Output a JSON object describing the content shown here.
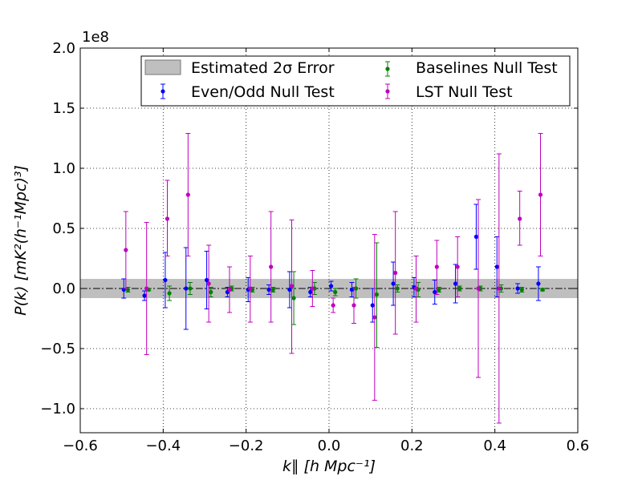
{
  "chart_data": {
    "type": "scatter",
    "xlabel": "k∥ [h Mpc⁻¹]",
    "ylabel": "P(k) [mK²(h⁻¹Mpc)³]",
    "exponent_label": "1e8",
    "xlim": [
      -0.6,
      0.6
    ],
    "ylim": [
      -1.2,
      2.0
    ],
    "x_ticks": [
      -0.6,
      -0.4,
      -0.2,
      0.0,
      0.2,
      0.4,
      0.6
    ],
    "x_tick_labels": [
      "−0.6",
      "−0.4",
      "−0.2",
      "0.0",
      "0.2",
      "0.4",
      "0.6"
    ],
    "y_ticks": [
      -1.0,
      -0.5,
      0.0,
      0.5,
      1.0,
      1.5,
      2.0
    ],
    "y_tick_labels": [
      "−1.0",
      "−0.5",
      "0.0",
      "0.5",
      "1.0",
      "1.5",
      "2.0"
    ],
    "grid": true,
    "legend_position": "top",
    "error_band": {
      "name": "Estimated 2σ Error",
      "lower": -0.08,
      "upper": 0.08,
      "color": "#bfbfbf"
    },
    "reference_line": {
      "y": 0.0,
      "style": "dash-dot",
      "color": "#000000"
    },
    "series": [
      {
        "name": "Even/Odd Null Test",
        "color": "#0000ff",
        "points": [
          {
            "x": -0.495,
            "y": -0.01,
            "lo": -0.08,
            "hi": 0.08
          },
          {
            "x": -0.445,
            "y": -0.06,
            "lo": -0.1,
            "hi": -0.02
          },
          {
            "x": -0.395,
            "y": 0.07,
            "lo": -0.16,
            "hi": 0.3
          },
          {
            "x": -0.345,
            "y": 0.0,
            "lo": -0.34,
            "hi": 0.34
          },
          {
            "x": -0.295,
            "y": 0.07,
            "lo": -0.17,
            "hi": 0.31
          },
          {
            "x": -0.245,
            "y": -0.03,
            "lo": -0.07,
            "hi": 0.01
          },
          {
            "x": -0.195,
            "y": -0.01,
            "lo": -0.11,
            "hi": 0.09
          },
          {
            "x": -0.145,
            "y": -0.01,
            "lo": -0.05,
            "hi": 0.03
          },
          {
            "x": -0.095,
            "y": -0.01,
            "lo": -0.16,
            "hi": 0.14
          },
          {
            "x": -0.045,
            "y": -0.03,
            "lo": -0.07,
            "hi": 0.01
          },
          {
            "x": 0.005,
            "y": 0.02,
            "lo": -0.02,
            "hi": 0.06
          },
          {
            "x": 0.055,
            "y": -0.01,
            "lo": -0.07,
            "hi": 0.05
          },
          {
            "x": 0.105,
            "y": -0.14,
            "lo": -0.28,
            "hi": 0.0
          },
          {
            "x": 0.155,
            "y": 0.04,
            "lo": -0.14,
            "hi": 0.22
          },
          {
            "x": 0.205,
            "y": 0.01,
            "lo": -0.07,
            "hi": 0.09
          },
          {
            "x": 0.255,
            "y": -0.03,
            "lo": -0.13,
            "hi": 0.07
          },
          {
            "x": 0.305,
            "y": 0.04,
            "lo": -0.12,
            "hi": 0.2
          },
          {
            "x": 0.355,
            "y": 0.43,
            "lo": 0.16,
            "hi": 0.7
          },
          {
            "x": 0.405,
            "y": 0.18,
            "lo": -0.07,
            "hi": 0.43
          },
          {
            "x": 0.455,
            "y": 0.0,
            "lo": -0.04,
            "hi": 0.04
          },
          {
            "x": 0.505,
            "y": 0.04,
            "lo": -0.1,
            "hi": 0.18
          }
        ]
      },
      {
        "name": "Baselines Null Test",
        "color": "#008000",
        "points": [
          {
            "x": -0.485,
            "y": -0.01,
            "lo": -0.03,
            "hi": 0.01
          },
          {
            "x": -0.435,
            "y": -0.01,
            "lo": -0.02,
            "hi": 0.0
          },
          {
            "x": -0.385,
            "y": -0.04,
            "lo": -0.1,
            "hi": 0.02
          },
          {
            "x": -0.335,
            "y": 0.0,
            "lo": -0.05,
            "hi": 0.05
          },
          {
            "x": -0.285,
            "y": -0.03,
            "lo": -0.07,
            "hi": 0.01
          },
          {
            "x": -0.235,
            "y": 0.0,
            "lo": -0.02,
            "hi": 0.02
          },
          {
            "x": -0.185,
            "y": -0.01,
            "lo": -0.03,
            "hi": 0.01
          },
          {
            "x": -0.135,
            "y": -0.01,
            "lo": -0.03,
            "hi": 0.01
          },
          {
            "x": -0.085,
            "y": -0.08,
            "lo": -0.3,
            "hi": 0.14
          },
          {
            "x": -0.035,
            "y": 0.0,
            "lo": -0.05,
            "hi": 0.05
          },
          {
            "x": 0.015,
            "y": -0.03,
            "lo": -0.06,
            "hi": 0.0
          },
          {
            "x": 0.065,
            "y": 0.0,
            "lo": -0.08,
            "hi": 0.08
          },
          {
            "x": 0.115,
            "y": -0.05,
            "lo": -0.49,
            "hi": 0.38
          },
          {
            "x": 0.165,
            "y": 0.0,
            "lo": -0.03,
            "hi": 0.03
          },
          {
            "x": 0.215,
            "y": -0.01,
            "lo": -0.07,
            "hi": 0.05
          },
          {
            "x": 0.265,
            "y": -0.01,
            "lo": -0.03,
            "hi": 0.01
          },
          {
            "x": 0.315,
            "y": 0.0,
            "lo": -0.02,
            "hi": 0.02
          },
          {
            "x": 0.365,
            "y": 0.0,
            "lo": -0.02,
            "hi": 0.02
          },
          {
            "x": 0.415,
            "y": 0.0,
            "lo": -0.03,
            "hi": 0.03
          },
          {
            "x": 0.465,
            "y": -0.01,
            "lo": -0.03,
            "hi": 0.01
          },
          {
            "x": 0.515,
            "y": -0.01,
            "lo": -0.02,
            "hi": 0.0
          }
        ]
      },
      {
        "name": "LST Null Test",
        "color": "#bf00bf",
        "points": [
          {
            "x": -0.49,
            "y": 0.32,
            "lo": 0.0,
            "hi": 0.64
          },
          {
            "x": -0.44,
            "y": 0.0,
            "lo": -0.55,
            "hi": 0.55
          },
          {
            "x": -0.39,
            "y": 0.58,
            "lo": 0.27,
            "hi": 0.9
          },
          {
            "x": -0.34,
            "y": 0.78,
            "lo": 0.27,
            "hi": 1.29
          },
          {
            "x": -0.29,
            "y": 0.04,
            "lo": -0.28,
            "hi": 0.36
          },
          {
            "x": -0.24,
            "y": -0.01,
            "lo": -0.2,
            "hi": 0.18
          },
          {
            "x": -0.19,
            "y": 0.0,
            "lo": -0.28,
            "hi": 0.27
          },
          {
            "x": -0.14,
            "y": 0.18,
            "lo": -0.28,
            "hi": 0.64
          },
          {
            "x": -0.09,
            "y": 0.02,
            "lo": -0.54,
            "hi": 0.57
          },
          {
            "x": -0.04,
            "y": 0.0,
            "lo": -0.15,
            "hi": 0.15
          },
          {
            "x": 0.01,
            "y": -0.14,
            "lo": -0.2,
            "hi": -0.08
          },
          {
            "x": 0.06,
            "y": -0.14,
            "lo": -0.29,
            "hi": 0.01
          },
          {
            "x": 0.11,
            "y": -0.24,
            "lo": -0.93,
            "hi": 0.45
          },
          {
            "x": 0.16,
            "y": 0.13,
            "lo": -0.38,
            "hi": 0.64
          },
          {
            "x": 0.21,
            "y": 0.0,
            "lo": -0.28,
            "hi": 0.27
          },
          {
            "x": 0.26,
            "y": 0.18,
            "lo": -0.05,
            "hi": 0.4
          },
          {
            "x": 0.31,
            "y": 0.18,
            "lo": -0.07,
            "hi": 0.43
          },
          {
            "x": 0.36,
            "y": 0.0,
            "lo": -0.74,
            "hi": 0.74
          },
          {
            "x": 0.41,
            "y": 0.0,
            "lo": -1.12,
            "hi": 1.12
          },
          {
            "x": 0.46,
            "y": 0.58,
            "lo": 0.36,
            "hi": 0.81
          },
          {
            "x": 0.51,
            "y": 0.78,
            "lo": 0.27,
            "hi": 1.29
          }
        ]
      }
    ]
  }
}
